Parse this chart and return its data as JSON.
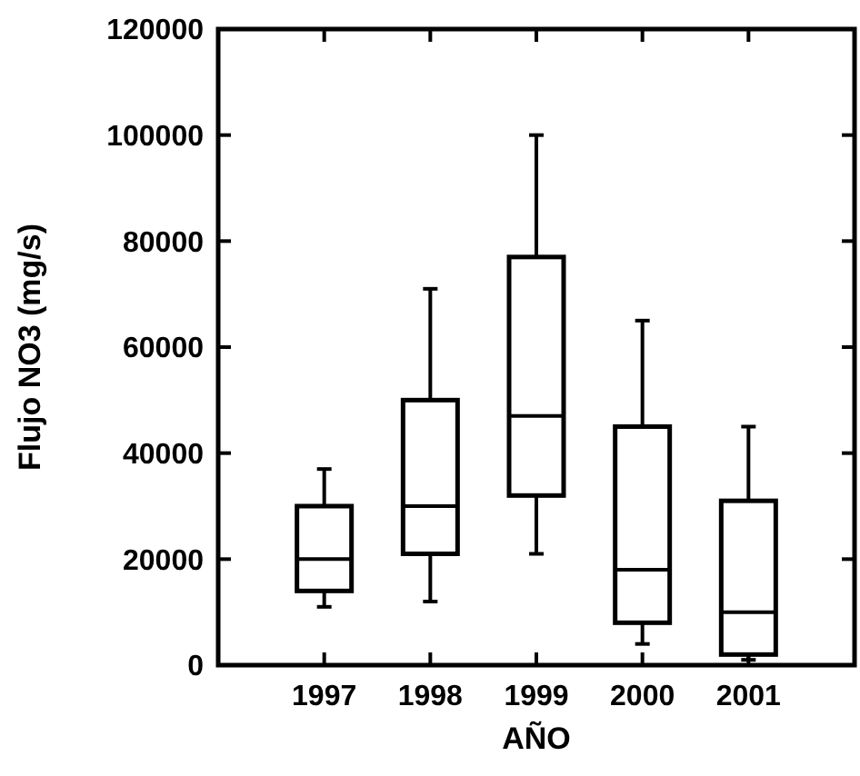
{
  "chart_data": {
    "type": "box",
    "xlabel": "AÑO",
    "ylabel": "Flujo NO3 (mg/s)",
    "categories": [
      "1997",
      "1998",
      "1999",
      "2000",
      "2001"
    ],
    "boxes": [
      {
        "low": 11000,
        "q1": 14000,
        "median": 20000,
        "q3": 30000,
        "high": 37000
      },
      {
        "low": 12000,
        "q1": 21000,
        "median": 30000,
        "q3": 50000,
        "high": 71000
      },
      {
        "low": 21000,
        "q1": 32000,
        "median": 47000,
        "q3": 77000,
        "high": 100000
      },
      {
        "low": 4000,
        "q1": 8000,
        "median": 18000,
        "q3": 45000,
        "high": 65000
      },
      {
        "low": 1000,
        "q1": 2000,
        "median": 10000,
        "q3": 31000,
        "high": 45000
      }
    ],
    "color": "#000000",
    "ylim": [
      0,
      120000
    ],
    "yticks": [
      0,
      20000,
      40000,
      60000,
      80000,
      100000,
      120000
    ],
    "grid": false
  }
}
